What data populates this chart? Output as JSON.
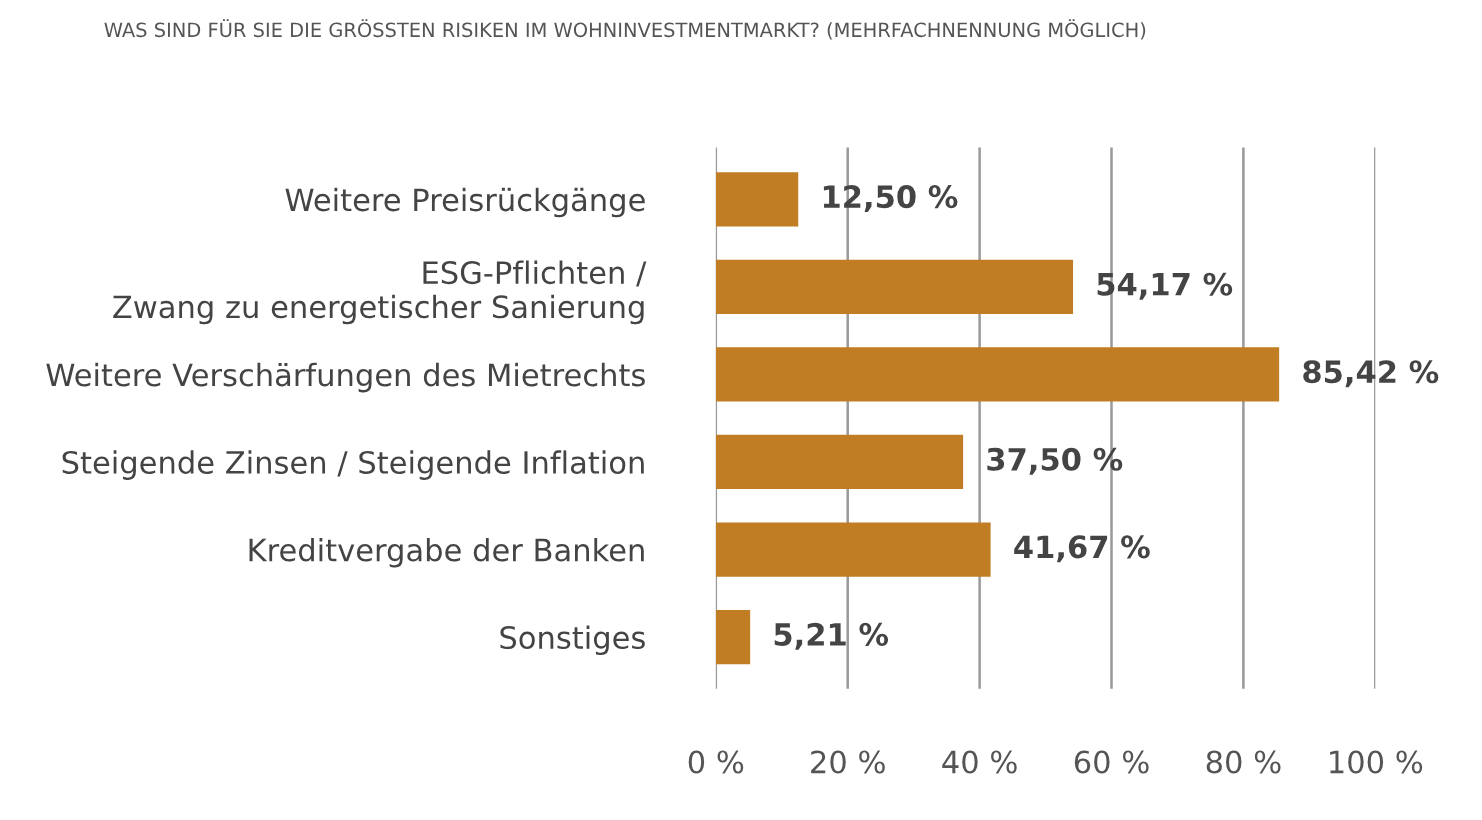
{
  "chart_data": {
    "type": "bar",
    "orientation": "horizontal",
    "title": "WAS SIND FÜR SIE DIE GRÖSSTEN RISIKEN IM WOHNINVESTMENTMARKT? (MEHRFACHNENNUNG MÖGLICH)",
    "categories": [
      "Weitere Preisrückgänge",
      "ESG-Pflichten /\nZwang zu energetischer Sanierung",
      "Weitere Verschärfungen des Mietrechts",
      "Steigende Zinsen / Steigende Inflation",
      "Kreditvergabe der Banken",
      "Sonstiges"
    ],
    "values": [
      12.5,
      54.17,
      85.42,
      37.5,
      41.67,
      5.21
    ],
    "value_labels": [
      "12,50 %",
      "54,17 %",
      "85,42 %",
      "37,50 %",
      "41,67 %",
      "5,21 %"
    ],
    "color": "#c17d24",
    "xlim": [
      0,
      100
    ],
    "xticks": [
      {
        "value": 0,
        "label": "0 %"
      },
      {
        "value": 20,
        "label": "20 %"
      },
      {
        "value": 40,
        "label": "40 %"
      },
      {
        "value": 60,
        "label": "60 %"
      },
      {
        "value": 80,
        "label": "80 %"
      },
      {
        "value": 100,
        "label": "100 %"
      }
    ],
    "grid": "x",
    "legend": false
  }
}
